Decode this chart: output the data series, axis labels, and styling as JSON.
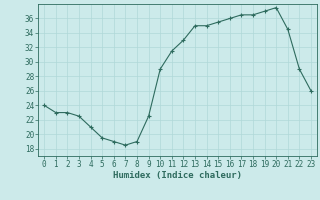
{
  "x": [
    0,
    1,
    2,
    3,
    4,
    5,
    6,
    7,
    8,
    9,
    10,
    11,
    12,
    13,
    14,
    15,
    16,
    17,
    18,
    19,
    20,
    21,
    22,
    23
  ],
  "y": [
    24,
    23,
    23,
    22.5,
    21,
    19.5,
    19,
    18.5,
    19,
    22.5,
    29,
    31.5,
    33,
    35,
    35,
    35.5,
    36,
    36.5,
    36.5,
    37,
    37.5,
    34.5,
    29,
    26
  ],
  "line_color": "#2e6b5e",
  "marker": "+",
  "bg_color": "#cceaea",
  "grid_color": "#b0d8d8",
  "xlabel": "Humidex (Indice chaleur)",
  "ylim": [
    17,
    38
  ],
  "xlim": [
    -0.5,
    23.5
  ],
  "yticks": [
    18,
    20,
    22,
    24,
    26,
    28,
    30,
    32,
    34,
    36
  ],
  "xticks": [
    0,
    1,
    2,
    3,
    4,
    5,
    6,
    7,
    8,
    9,
    10,
    11,
    12,
    13,
    14,
    15,
    16,
    17,
    18,
    19,
    20,
    21,
    22,
    23
  ],
  "xlabel_fontsize": 6.5,
  "tick_fontsize": 5.5,
  "linewidth": 0.8,
  "markersize": 3,
  "markeredgewidth": 0.8
}
